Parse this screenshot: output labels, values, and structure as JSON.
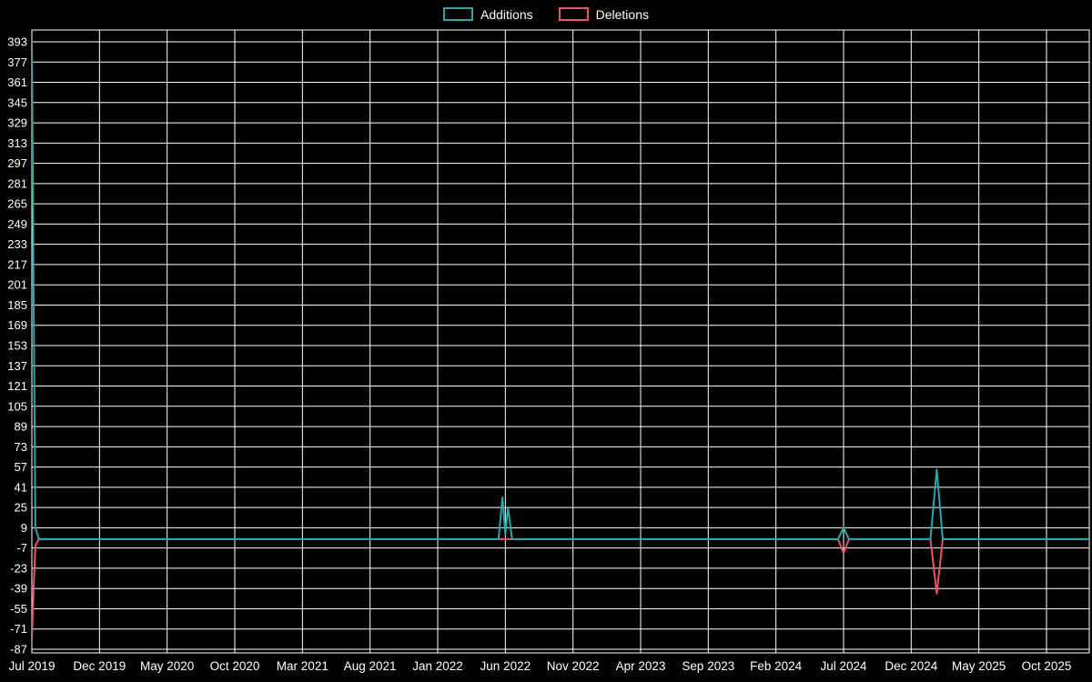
{
  "chart_data": {
    "type": "line",
    "title": "",
    "legend_position": "top-center",
    "background": "#000000",
    "grid_color": "#ffffff",
    "grid_on": true,
    "y_ticks": [
      393,
      377,
      361,
      345,
      329,
      313,
      297,
      281,
      265,
      249,
      233,
      217,
      201,
      185,
      169,
      153,
      137,
      121,
      105,
      89,
      73,
      57,
      41,
      25,
      9,
      -7,
      -23,
      -39,
      -55,
      -71,
      -87
    ],
    "x_ticks": [
      "Jul 2019",
      "Dec 2019",
      "May 2020",
      "Oct 2020",
      "Mar 2021",
      "Aug 2021",
      "Jan 2022",
      "Jun 2022",
      "Nov 2022",
      "Apr 2023",
      "Sep 2023",
      "Feb 2024",
      "Jul 2024",
      "Dec 2024",
      "May 2025",
      "Oct 2025"
    ],
    "ylim": [
      -90,
      403
    ],
    "series": [
      {
        "name": "Additions",
        "color": "#2aa7a6",
        "points": [
          [
            "2019-07-01",
            401
          ],
          [
            "2019-07-05",
            190
          ],
          [
            "2019-07-09",
            9
          ],
          [
            "2019-07-17",
            0
          ],
          [
            "2022-05-16",
            0
          ],
          [
            "2022-05-25",
            33
          ],
          [
            "2022-06-01",
            4
          ],
          [
            "2022-06-07",
            25
          ],
          [
            "2022-06-16",
            0
          ],
          [
            "2024-06-19",
            0
          ],
          [
            "2024-07-01",
            9
          ],
          [
            "2024-07-13",
            0
          ],
          [
            "2025-01-14",
            0
          ],
          [
            "2025-01-28",
            55
          ],
          [
            "2025-02-11",
            0
          ],
          [
            "2026-01-15",
            0
          ]
        ]
      },
      {
        "name": "Deletions",
        "color": "#ee526b",
        "points": [
          [
            "2019-07-01",
            -80
          ],
          [
            "2019-07-05",
            -38
          ],
          [
            "2019-07-09",
            -5
          ],
          [
            "2019-07-17",
            0
          ],
          [
            "2024-06-19",
            0
          ],
          [
            "2024-07-01",
            -11
          ],
          [
            "2024-07-13",
            0
          ],
          [
            "2025-01-14",
            0
          ],
          [
            "2025-01-28",
            -43
          ],
          [
            "2025-02-11",
            0
          ],
          [
            "2026-01-15",
            0
          ]
        ]
      }
    ]
  }
}
